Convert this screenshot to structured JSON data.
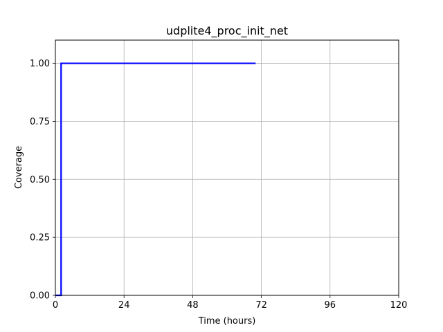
{
  "chart_data": {
    "type": "line",
    "title": "udplite4_proc_init_net",
    "xlabel": "Time (hours)",
    "ylabel": "Coverage",
    "xlim": [
      0,
      120
    ],
    "ylim": [
      0,
      1.1
    ],
    "xticks": [
      0,
      24,
      48,
      72,
      96,
      120
    ],
    "xtick_labels": [
      "0",
      "24",
      "48",
      "72",
      "96",
      "120"
    ],
    "yticks": [
      0,
      0.25,
      0.5,
      0.75,
      1.0
    ],
    "ytick_labels": [
      "0.00",
      "0.25",
      "0.50",
      "0.75",
      "1.00"
    ],
    "grid": true,
    "series": [
      {
        "color": "#0000ff",
        "x": [
          0,
          2,
          2,
          70
        ],
        "y": [
          0,
          0,
          1.0,
          1.0
        ]
      }
    ]
  }
}
